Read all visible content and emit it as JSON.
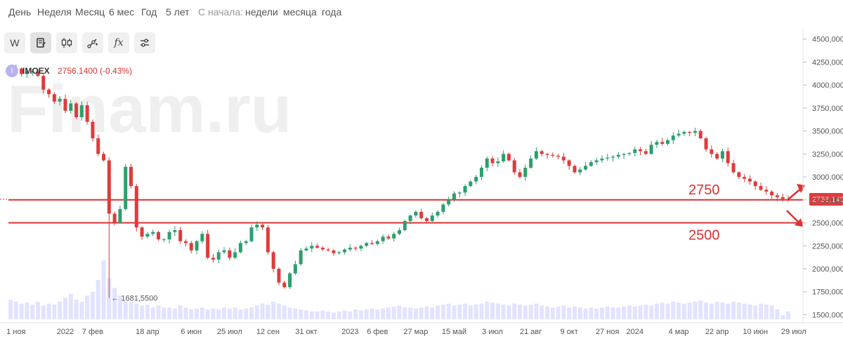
{
  "periods": [
    "День",
    "Неделя",
    "Месяц",
    "6 мес",
    "Год",
    "5 лет"
  ],
  "since_label": "С начала:",
  "since_options": [
    "недели",
    "месяца",
    "года"
  ],
  "tools": [
    {
      "name": "weekly-interval-button",
      "label": "W",
      "icon": "text-W"
    },
    {
      "name": "chart-settings-button",
      "label": "",
      "icon": "document-edit-icon"
    },
    {
      "name": "candle-type-button",
      "label": "",
      "icon": "candlestick-icon"
    },
    {
      "name": "drawing-tools-button",
      "label": "",
      "icon": "line-draw-icon"
    },
    {
      "name": "indicators-button",
      "label": "fx",
      "icon": "function-icon"
    },
    {
      "name": "settings-button",
      "label": "",
      "icon": "sliders-icon"
    }
  ],
  "ticker": {
    "badge": "I",
    "name": "IMOEX",
    "price_change": "2756.1400 (-0.43%)"
  },
  "watermark": "Finam.ru",
  "chart_data": {
    "type": "candlestick",
    "ylim": [
      1450,
      4620
    ],
    "y_ticks": [
      {
        "value": 1500,
        "label": "1500,000"
      },
      {
        "value": 1750,
        "label": "1750,000"
      },
      {
        "value": 2000,
        "label": "2000,000"
      },
      {
        "value": 2250,
        "label": "2250,000"
      },
      {
        "value": 2500,
        "label": "2500,000"
      },
      {
        "value": 2750,
        "label": "2750,000"
      },
      {
        "value": 3000,
        "label": "3000,000"
      },
      {
        "value": 3250,
        "label": "3250,000"
      },
      {
        "value": 3500,
        "label": "3500,000"
      },
      {
        "value": 3750,
        "label": "3750,000"
      },
      {
        "value": 4000,
        "label": "4000,000"
      },
      {
        "value": 4250,
        "label": "4250,000"
      },
      {
        "value": 4500,
        "label": "4500,000"
      }
    ],
    "x_labels": [
      {
        "index": 1,
        "label": "1 ноя"
      },
      {
        "index": 10,
        "label": "2022"
      },
      {
        "index": 15,
        "label": "7 фев"
      },
      {
        "index": 25,
        "label": "18 апр"
      },
      {
        "index": 33,
        "label": "6 июн"
      },
      {
        "index": 40,
        "label": "25 июл"
      },
      {
        "index": 47,
        "label": "12 сен"
      },
      {
        "index": 54,
        "label": "31 окт"
      },
      {
        "index": 62,
        "label": "2023"
      },
      {
        "index": 67,
        "label": "6 фев"
      },
      {
        "index": 74,
        "label": "27 мар"
      },
      {
        "index": 81,
        "label": "15 май"
      },
      {
        "index": 88,
        "label": "3 июл"
      },
      {
        "index": 95,
        "label": "21 авг"
      },
      {
        "index": 102,
        "label": "9 окт"
      },
      {
        "index": 109,
        "label": "27 ноя"
      },
      {
        "index": 114,
        "label": "2024"
      },
      {
        "index": 122,
        "label": "4 мар"
      },
      {
        "index": 129,
        "label": "22 апр"
      },
      {
        "index": 136,
        "label": "10 июн"
      },
      {
        "index": 143,
        "label": "29 июл"
      }
    ],
    "closes": [
      4150,
      4180,
      4120,
      4140,
      4150,
      4100,
      3950,
      3900,
      3820,
      3850,
      3720,
      3800,
      3650,
      3780,
      3600,
      3420,
      3250,
      3180,
      2600,
      2500,
      2650,
      3110,
      2900,
      2450,
      2350,
      2380,
      2400,
      2320,
      2320,
      2400,
      2420,
      2300,
      2280,
      2200,
      2300,
      2380,
      2120,
      2100,
      2180,
      2200,
      2120,
      2180,
      2280,
      2300,
      2450,
      2480,
      2450,
      2180,
      2000,
      1850,
      1800,
      1950,
      2050,
      2200,
      2220,
      2250,
      2230,
      2210,
      2200,
      2170,
      2180,
      2210,
      2230,
      2220,
      2250,
      2280,
      2270,
      2300,
      2350,
      2330,
      2380,
      2420,
      2520,
      2580,
      2620,
      2550,
      2520,
      2580,
      2620,
      2700,
      2750,
      2820,
      2830,
      2900,
      2950,
      3000,
      3100,
      3200,
      3150,
      3170,
      3250,
      3180,
      3050,
      3000,
      3100,
      3200,
      3280,
      3250,
      3240,
      3230,
      3220,
      3180,
      3120,
      3050,
      3080,
      3120,
      3160,
      3180,
      3200,
      3210,
      3220,
      3240,
      3250,
      3260,
      3300,
      3280,
      3250,
      3350,
      3380,
      3360,
      3400,
      3450,
      3470,
      3490,
      3480,
      3500,
      3420,
      3300,
      3250,
      3200,
      3280,
      3150,
      3050,
      3000,
      2980,
      2950,
      2900,
      2860,
      2840,
      2800,
      2780,
      2760,
      2756
    ],
    "volumes": [
      1.0,
      0.9,
      0.8,
      0.85,
      0.75,
      0.9,
      0.7,
      0.8,
      0.75,
      0.9,
      1.1,
      1.3,
      1.0,
      0.9,
      1.2,
      1.4,
      2.0,
      3.0,
      2.1,
      1.6,
      1.2,
      0.9,
      0.9,
      0.8,
      0.7,
      0.75,
      0.6,
      0.7,
      0.6,
      0.6,
      0.55,
      0.7,
      0.6,
      0.5,
      0.55,
      0.6,
      0.5,
      0.55,
      0.5,
      0.6,
      0.55,
      0.6,
      0.5,
      0.55,
      0.6,
      0.7,
      0.8,
      0.75,
      0.9,
      0.8,
      0.7,
      0.6,
      0.55,
      0.5,
      0.45,
      0.4,
      0.4,
      0.45,
      0.4,
      0.35,
      0.4,
      0.45,
      0.4,
      0.5,
      0.45,
      0.5,
      0.55,
      0.5,
      0.55,
      0.6,
      0.65,
      0.7,
      0.6,
      0.6,
      0.55,
      0.6,
      0.65,
      0.6,
      0.7,
      0.75,
      0.8,
      0.7,
      0.75,
      0.8,
      0.7,
      0.75,
      0.8,
      0.9,
      0.85,
      0.8,
      0.75,
      0.7,
      0.8,
      0.75,
      0.7,
      0.75,
      0.8,
      0.7,
      0.65,
      0.6,
      0.65,
      0.7,
      0.6,
      0.65,
      0.6,
      0.55,
      0.6,
      0.55,
      0.6,
      0.65,
      0.6,
      0.6,
      0.65,
      0.7,
      0.65,
      0.7,
      0.75,
      0.7,
      0.8,
      0.85,
      0.8,
      0.9,
      0.85,
      0.8,
      0.85,
      0.9,
      0.95,
      0.85,
      0.8,
      0.9,
      0.85,
      0.8,
      0.9,
      0.85,
      0.8,
      0.75,
      0.7,
      0.8,
      0.75,
      0.7,
      0.5,
      0.2,
      0.4
    ],
    "annotations": [
      {
        "type": "min-label",
        "index": 18,
        "value": 1681.55,
        "label": "1681,5500"
      },
      {
        "type": "level-line",
        "value": 2750,
        "label": "2750"
      },
      {
        "type": "level-line",
        "value": 2500,
        "label": "2500"
      },
      {
        "type": "last-price",
        "value": 2756.14,
        "label": "2756,1400"
      }
    ],
    "grid": false
  }
}
